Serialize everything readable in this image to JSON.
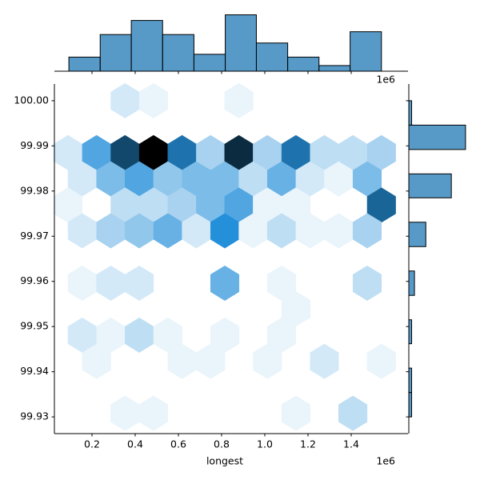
{
  "chart_data": {
    "type": "hexbin_joint",
    "xlabel": "longest",
    "x_offset_label": "1e6",
    "xlim": [
      0.026,
      1.663
    ],
    "ylim": [
      99.9263,
      100.0037
    ],
    "xticks": [
      0.2,
      0.4,
      0.6,
      0.8,
      {
        "value": 1,
        "label": "1.0"
      },
      1.2,
      1.4
    ],
    "yticks": [
      {
        "value": 100,
        "label": "100.00"
      },
      99.99,
      99.98,
      99.97,
      99.96,
      99.95,
      99.94,
      99.93
    ],
    "color": "#1f77b4",
    "hist_alpha": 0.75,
    "hexbins": {
      "x": [
        0.353,
        0.485,
        0.88,
        0.089,
        0.221,
        0.353,
        0.485,
        0.617,
        0.749,
        0.88,
        1.012,
        1.144,
        1.276,
        1.408,
        1.54,
        0.155,
        0.287,
        0.419,
        0.551,
        0.683,
        0.815,
        0.946,
        1.078,
        1.21,
        1.342,
        1.474,
        0.089,
        0.353,
        0.485,
        0.617,
        0.749,
        0.88,
        1.012,
        1.144,
        1.54,
        0.155,
        0.287,
        0.419,
        0.551,
        0.683,
        0.815,
        0.946,
        1.078,
        1.21,
        1.342,
        1.474,
        0.155,
        0.287,
        0.419,
        0.815,
        1.078,
        1.474,
        1.144,
        0.155,
        0.287,
        0.419,
        0.551,
        0.815,
        1.078,
        0.221,
        0.617,
        0.749,
        1.012,
        1.276,
        1.54,
        0.353,
        0.485,
        1.144,
        1.408
      ],
      "y": [
        100.0,
        100.0,
        100.0,
        99.9885,
        99.9885,
        99.9885,
        99.9885,
        99.9885,
        99.9885,
        99.9885,
        99.9885,
        99.9885,
        99.9885,
        99.9885,
        99.9885,
        99.9827,
        99.9827,
        99.9827,
        99.9827,
        99.9827,
        99.9827,
        99.9827,
        99.9827,
        99.9827,
        99.9827,
        99.9827,
        99.9769,
        99.9769,
        99.9769,
        99.9769,
        99.9769,
        99.9769,
        99.9769,
        99.9769,
        99.9769,
        99.9712,
        99.9712,
        99.9712,
        99.9712,
        99.9712,
        99.9712,
        99.9712,
        99.9712,
        99.9712,
        99.9712,
        99.9712,
        99.9596,
        99.9596,
        99.9596,
        99.9596,
        99.9596,
        99.9596,
        99.9539,
        99.9481,
        99.9481,
        99.9481,
        99.9481,
        99.9481,
        99.9481,
        99.9423,
        99.9423,
        99.9423,
        99.9423,
        99.9423,
        99.9423,
        99.9308,
        99.9308,
        99.9308,
        99.9308
      ],
      "counts": [
        2,
        1,
        1,
        2,
        8,
        15,
        20,
        12,
        4,
        17,
        4,
        12,
        3,
        3,
        4,
        2,
        6,
        8,
        5,
        6,
        6,
        3,
        7,
        2,
        1,
        6,
        1,
        3,
        3,
        4,
        6,
        8,
        1,
        1,
        13,
        2,
        4,
        5,
        7,
        2,
        10,
        1,
        3,
        1,
        1,
        4,
        1,
        2,
        2,
        7,
        1,
        3,
        1,
        2,
        1,
        3,
        1,
        1,
        1,
        1,
        1,
        1,
        1,
        2,
        1,
        1,
        1,
        1,
        3
      ]
    },
    "marginal_x": {
      "bins": [
        0.093,
        0.238,
        0.382,
        0.527,
        0.672,
        0.817,
        0.961,
        1.106,
        1.251,
        1.395,
        1.54
      ],
      "counts": [
        5,
        13,
        18,
        13,
        6,
        20,
        10,
        5,
        2,
        14
      ],
      "lim": [
        0,
        21
      ]
    },
    "marginal_y": {
      "bins": [
        99.93,
        99.9354,
        99.9408,
        99.9462,
        99.9515,
        99.9569,
        99.9623,
        99.9677,
        99.9731,
        99.9785,
        99.9838,
        99.9892,
        99.9946,
        100.0
      ],
      "counts": [
        1,
        1,
        0,
        1,
        0,
        2,
        0,
        6,
        0,
        15,
        0,
        20,
        1
      ],
      "lim": [
        0,
        22
      ]
    }
  }
}
